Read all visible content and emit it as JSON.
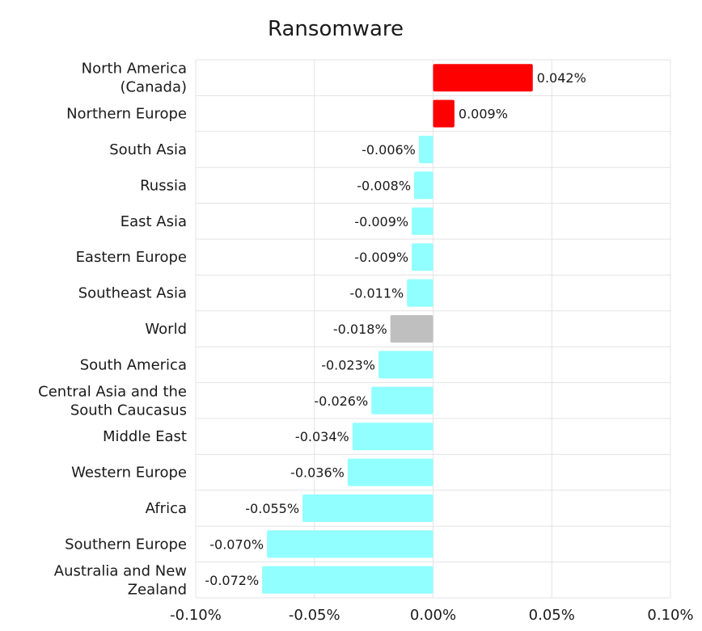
{
  "chart_data": {
    "type": "bar",
    "orientation": "horizontal",
    "title": "Ransomware",
    "xlabel": "",
    "ylabel": "",
    "xlim": [
      -0.1,
      0.1
    ],
    "x_ticks": [
      -0.1,
      -0.05,
      0.0,
      0.05,
      0.1
    ],
    "x_tick_labels": [
      "-0.10%",
      "-0.05%",
      "0.00%",
      "0.05%",
      "0.10%"
    ],
    "grid": true,
    "legend": "none",
    "colors": {
      "positive": "#ff0000",
      "negative": "#91ffff",
      "world": "#bfbfbf"
    },
    "categories": [
      "North America (Canada)",
      "Northern Europe",
      "South Asia",
      "Russia",
      "East Asia",
      "Eastern Europe",
      "Southeast Asia",
      "World",
      "South America",
      "Central Asia and the South Caucasus",
      "Middle East",
      "Western Europe",
      "Africa",
      "Southern Europe",
      "Australia and New Zealand"
    ],
    "category_lines": [
      [
        "North America",
        "(Canada)"
      ],
      [
        "Northern Europe"
      ],
      [
        "South Asia"
      ],
      [
        "Russia"
      ],
      [
        "East Asia"
      ],
      [
        "Eastern Europe"
      ],
      [
        "Southeast Asia"
      ],
      [
        "World"
      ],
      [
        "South America"
      ],
      [
        "Central Asia and the",
        "South Caucasus"
      ],
      [
        "Middle East"
      ],
      [
        "Western Europe"
      ],
      [
        "Africa"
      ],
      [
        "Southern Europe"
      ],
      [
        "Australia and New",
        "Zealand"
      ]
    ],
    "values": [
      0.042,
      0.009,
      -0.006,
      -0.008,
      -0.009,
      -0.009,
      -0.011,
      -0.018,
      -0.023,
      -0.026,
      -0.034,
      -0.036,
      -0.055,
      -0.07,
      -0.072
    ],
    "data_labels": [
      "0.042%",
      "0.009%",
      "-0.006%",
      "-0.008%",
      "-0.009%",
      "-0.009%",
      "-0.011%",
      "-0.018%",
      "-0.023%",
      "-0.026%",
      "-0.034%",
      "-0.036%",
      "-0.055%",
      "-0.070%",
      "-0.072%"
    ],
    "highlight_category": "World",
    "unit": "%"
  }
}
